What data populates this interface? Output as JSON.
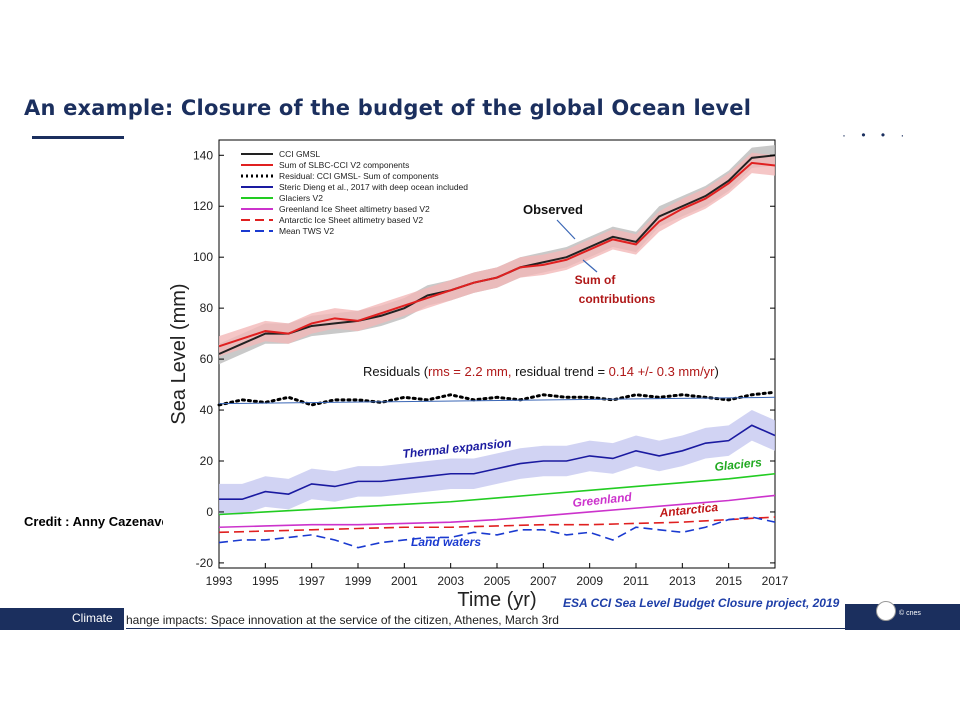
{
  "slide": {
    "title": "An example: Closure of the budget of the global Ocean level",
    "credit": "Credit : Anny Cazenave",
    "source": "ESA CCI Sea Level Budget Closure project, 2019",
    "footer_left": "Climate",
    "footer_text": "hange impacts: Space innovation at the service of the citizen, Athenes, March 3rd",
    "logo_text": "© cnes",
    "dots": "· • • ·"
  },
  "chart_data": {
    "type": "line",
    "xlabel": "Time (yr)",
    "ylabel": "Sea Level (mm)",
    "xlim": [
      1993,
      2017
    ],
    "ylim": [
      -22,
      146
    ],
    "xticks": [
      "1993",
      "1995",
      "1997",
      "1999",
      "2001",
      "2003",
      "2005",
      "2007",
      "2009",
      "2011",
      "2013",
      "2015",
      "2017"
    ],
    "yticks": [
      "-20",
      "0",
      "20",
      "40",
      "60",
      "80",
      "100",
      "120",
      "140"
    ],
    "legend_position": "top-left",
    "legend": [
      {
        "label": "CCI GMSL",
        "color": "#222222",
        "style": "solid"
      },
      {
        "label": "Sum of SLBC-CCI V2 components",
        "color": "#e02020",
        "style": "solid"
      },
      {
        "label": "Residual: CCI GMSL- Sum of components",
        "color": "#000000",
        "style": "dotted"
      },
      {
        "label": "Steric Dieng et al., 2017 with deep ocean included",
        "color": "#1a1aa0",
        "style": "solid"
      },
      {
        "label": "Glaciers V2",
        "color": "#22cc22",
        "style": "solid"
      },
      {
        "label": "Greenland Ice Sheet altimetry based V2",
        "color": "#cc33cc",
        "style": "solid"
      },
      {
        "label": "Antarctic Ice Sheet altimetry based V2",
        "color": "#e02020",
        "style": "dashed"
      },
      {
        "label": "Mean TWS V2",
        "color": "#1a3ad0",
        "style": "dashed"
      }
    ],
    "annotations": {
      "observed": "Observed",
      "sum_line1": "Sum of",
      "sum_line2": "contributions",
      "residuals_prefix": "Residuals (",
      "residuals_rms": "rms = 2.2 mm,",
      "residuals_trend_label": " residual trend = ",
      "residuals_trend_value": "0.14 +/- 0.3 mm/yr",
      "residuals_suffix": ")",
      "thermal": "Thermal expansion",
      "glaciers": "Glaciers",
      "greenland": "Greenland",
      "antarctica": "Antarctica",
      "land_waters": "Land waters"
    },
    "series": [
      {
        "name": "CCI GMSL",
        "color": "#222222",
        "band": "#bbbbbb",
        "x": [
          1993,
          1994,
          1995,
          1996,
          1997,
          1998,
          1999,
          2000,
          2001,
          2002,
          2003,
          2004,
          2005,
          2006,
          2007,
          2008,
          2009,
          2010,
          2011,
          2012,
          2013,
          2014,
          2015,
          2016,
          2017
        ],
        "y": [
          62,
          66,
          70,
          70,
          73,
          74,
          75,
          77,
          80,
          85,
          87,
          90,
          92,
          96,
          98,
          100,
          104,
          108,
          106,
          116,
          120,
          124,
          130,
          139,
          140
        ]
      },
      {
        "name": "Sum of SLBC-CCI V2 components",
        "color": "#e02020",
        "band": "#f3b8b8",
        "x": [
          1993,
          1994,
          1995,
          1996,
          1997,
          1998,
          1999,
          2000,
          2001,
          2002,
          2003,
          2004,
          2005,
          2006,
          2007,
          2008,
          2009,
          2010,
          2011,
          2012,
          2013,
          2014,
          2015,
          2016,
          2017
        ],
        "y": [
          65,
          68,
          71,
          70,
          74,
          76,
          75,
          78,
          81,
          84,
          87,
          90,
          92,
          96,
          97,
          99,
          103,
          107,
          105,
          114,
          119,
          123,
          129,
          137,
          136
        ]
      },
      {
        "name": "Residual: CCI GMSL- Sum of components",
        "color": "#000000",
        "x": [
          1993,
          1994,
          1995,
          1996,
          1997,
          1998,
          1999,
          2000,
          2001,
          2002,
          2003,
          2004,
          2005,
          2006,
          2007,
          2008,
          2009,
          2010,
          2011,
          2012,
          2013,
          2014,
          2015,
          2016,
          2017
        ],
        "y": [
          42,
          44,
          43,
          45,
          42,
          44,
          44,
          43,
          45,
          44,
          46,
          44,
          45,
          44,
          46,
          45,
          45,
          44,
          46,
          45,
          46,
          45,
          44,
          46,
          47
        ]
      },
      {
        "name": "Residual trend",
        "color": "#3a66b5",
        "x": [
          1993,
          2017
        ],
        "y": [
          42.5,
          45
        ]
      },
      {
        "name": "Steric Dieng et al., 2017 with deep ocean included",
        "color": "#1a1aa0",
        "band": "#c6c8f0",
        "x": [
          1993,
          1994,
          1995,
          1996,
          1997,
          1998,
          1999,
          2000,
          2001,
          2002,
          2003,
          2004,
          2005,
          2006,
          2007,
          2008,
          2009,
          2010,
          2011,
          2012,
          2013,
          2014,
          2015,
          2016,
          2017
        ],
        "y": [
          5,
          5,
          8,
          7,
          11,
          10,
          12,
          12,
          13,
          14,
          15,
          15,
          17,
          19,
          20,
          20,
          22,
          21,
          24,
          22,
          24,
          27,
          28,
          34,
          30
        ]
      },
      {
        "name": "Glaciers V2",
        "color": "#22cc22",
        "x": [
          1993,
          1995,
          1997,
          1999,
          2001,
          2003,
          2005,
          2007,
          2009,
          2011,
          2013,
          2015,
          2017
        ],
        "y": [
          -1,
          0,
          1,
          2,
          3,
          4,
          5.5,
          7,
          8.5,
          10,
          11.5,
          13,
          15
        ]
      },
      {
        "name": "Greenland Ice Sheet altimetry based V2",
        "color": "#cc33cc",
        "x": [
          1993,
          1995,
          1997,
          1999,
          2001,
          2003,
          2005,
          2007,
          2009,
          2011,
          2013,
          2015,
          2017
        ],
        "y": [
          -6,
          -5.5,
          -5,
          -5,
          -4.5,
          -4,
          -3,
          -1.5,
          0,
          1.5,
          3,
          4.5,
          6.5
        ]
      },
      {
        "name": "Antarctic Ice Sheet altimetry based V2",
        "color": "#e02020",
        "x": [
          1993,
          1995,
          1997,
          1999,
          2001,
          2003,
          2005,
          2007,
          2009,
          2011,
          2013,
          2015,
          2017
        ],
        "y": [
          -8,
          -7.5,
          -7,
          -6.5,
          -6,
          -6,
          -5.5,
          -5,
          -5,
          -4.5,
          -4,
          -3,
          -2
        ]
      },
      {
        "name": "Mean TWS V2",
        "color": "#1a3ad0",
        "x": [
          1993,
          1994,
          1995,
          1996,
          1997,
          1998,
          1999,
          2000,
          2001,
          2002,
          2003,
          2004,
          2005,
          2006,
          2007,
          2008,
          2009,
          2010,
          2011,
          2012,
          2013,
          2014,
          2015,
          2016,
          2017
        ],
        "y": [
          -12,
          -11,
          -11,
          -10,
          -9,
          -11,
          -14,
          -12,
          -11,
          -10,
          -10,
          -8,
          -9,
          -7,
          -7,
          -9,
          -8,
          -11,
          -6,
          -7,
          -8,
          -6,
          -3,
          -2,
          -4
        ]
      }
    ]
  }
}
